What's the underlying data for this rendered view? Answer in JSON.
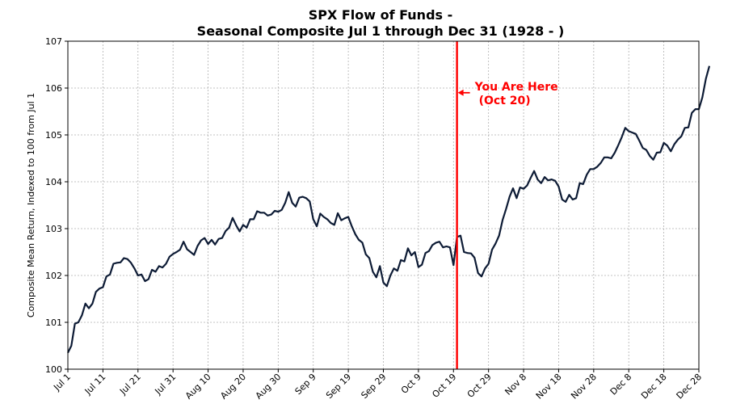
{
  "chart_data": {
    "type": "line",
    "title_line1": "SPX Flow of Funds -",
    "title_line2": "Seasonal Composite Jul 1 through Dec 31 (1928 - )",
    "xlabel": "",
    "ylabel": "Composite Mean Return, Indexed to 100 from Jul 1",
    "ylim": [
      100,
      107
    ],
    "xlim": [
      0,
      180
    ],
    "yticks": [
      100,
      101,
      102,
      103,
      104,
      105,
      106,
      107
    ],
    "xticks": [
      {
        "day": 0,
        "label": "Jul 1"
      },
      {
        "day": 10,
        "label": "Jul 11"
      },
      {
        "day": 20,
        "label": "Jul 21"
      },
      {
        "day": 30,
        "label": "Jul 31"
      },
      {
        "day": 40,
        "label": "Aug 10"
      },
      {
        "day": 50,
        "label": "Aug 20"
      },
      {
        "day": 60,
        "label": "Aug 30"
      },
      {
        "day": 70,
        "label": "Sep 9"
      },
      {
        "day": 80,
        "label": "Sep 19"
      },
      {
        "day": 90,
        "label": "Sep 29"
      },
      {
        "day": 100,
        "label": "Oct 9"
      },
      {
        "day": 110,
        "label": "Oct 19"
      },
      {
        "day": 120,
        "label": "Oct 29"
      },
      {
        "day": 130,
        "label": "Nov 8"
      },
      {
        "day": 140,
        "label": "Nov 18"
      },
      {
        "day": 150,
        "label": "Nov 28"
      },
      {
        "day": 160,
        "label": "Dec 8"
      },
      {
        "day": 170,
        "label": "Dec 18"
      },
      {
        "day": 180,
        "label": "Dec 28"
      }
    ],
    "grid": true,
    "line_color": "#0d1b35",
    "marker": {
      "day": 111,
      "color": "#ff0000"
    },
    "annotation": {
      "line1": "You Are Here",
      "line2": "(Oct 20)",
      "color": "#ff0000",
      "y": 105.9
    },
    "series": [
      {
        "name": "Seasonal Composite",
        "points": [
          [
            0,
            100.35
          ],
          [
            1,
            100.5
          ],
          [
            2,
            100.97
          ],
          [
            3,
            101.0
          ],
          [
            4,
            101.15
          ],
          [
            5,
            101.4
          ],
          [
            6,
            101.3
          ],
          [
            7,
            101.4
          ],
          [
            8,
            101.65
          ],
          [
            9,
            101.72
          ],
          [
            10,
            101.75
          ],
          [
            11,
            101.98
          ],
          [
            12,
            102.02
          ],
          [
            13,
            102.25
          ],
          [
            14,
            102.27
          ],
          [
            15,
            102.28
          ],
          [
            16,
            102.37
          ],
          [
            17,
            102.35
          ],
          [
            18,
            102.27
          ],
          [
            19,
            102.15
          ],
          [
            20,
            102.0
          ],
          [
            21,
            102.02
          ],
          [
            22,
            101.88
          ],
          [
            23,
            101.92
          ],
          [
            24,
            102.12
          ],
          [
            25,
            102.08
          ],
          [
            26,
            102.2
          ],
          [
            27,
            102.17
          ],
          [
            28,
            102.25
          ],
          [
            29,
            102.4
          ],
          [
            30,
            102.46
          ],
          [
            31,
            102.5
          ],
          [
            32,
            102.55
          ],
          [
            33,
            102.72
          ],
          [
            34,
            102.56
          ],
          [
            35,
            102.5
          ],
          [
            36,
            102.44
          ],
          [
            37,
            102.63
          ],
          [
            38,
            102.75
          ],
          [
            39,
            102.8
          ],
          [
            40,
            102.67
          ],
          [
            41,
            102.76
          ],
          [
            42,
            102.66
          ],
          [
            43,
            102.78
          ],
          [
            44,
            102.8
          ],
          [
            45,
            102.95
          ],
          [
            46,
            103.02
          ],
          [
            47,
            103.23
          ],
          [
            48,
            103.07
          ],
          [
            49,
            102.94
          ],
          [
            50,
            103.08
          ],
          [
            51,
            103.02
          ],
          [
            52,
            103.2
          ],
          [
            53,
            103.2
          ],
          [
            54,
            103.37
          ],
          [
            55,
            103.34
          ],
          [
            56,
            103.34
          ],
          [
            57,
            103.28
          ],
          [
            58,
            103.3
          ],
          [
            59,
            103.38
          ],
          [
            60,
            103.36
          ],
          [
            61,
            103.4
          ],
          [
            62,
            103.55
          ],
          [
            63,
            103.78
          ],
          [
            64,
            103.55
          ],
          [
            65,
            103.47
          ],
          [
            66,
            103.66
          ],
          [
            67,
            103.68
          ],
          [
            68,
            103.65
          ],
          [
            69,
            103.58
          ],
          [
            70,
            103.2
          ],
          [
            71,
            103.05
          ],
          [
            72,
            103.32
          ],
          [
            73,
            103.25
          ],
          [
            74,
            103.2
          ],
          [
            75,
            103.12
          ],
          [
            76,
            103.08
          ],
          [
            77,
            103.33
          ],
          [
            78,
            103.18
          ],
          [
            79,
            103.22
          ],
          [
            80,
            103.25
          ],
          [
            81,
            103.05
          ],
          [
            82,
            102.88
          ],
          [
            83,
            102.76
          ],
          [
            84,
            102.7
          ],
          [
            85,
            102.45
          ],
          [
            86,
            102.37
          ],
          [
            87,
            102.08
          ],
          [
            88,
            101.96
          ],
          [
            89,
            102.2
          ],
          [
            90,
            101.85
          ],
          [
            91,
            101.77
          ],
          [
            92,
            102.0
          ],
          [
            93,
            102.15
          ],
          [
            94,
            102.1
          ],
          [
            95,
            102.33
          ],
          [
            96,
            102.3
          ],
          [
            97,
            102.58
          ],
          [
            98,
            102.43
          ],
          [
            99,
            102.5
          ],
          [
            100,
            102.18
          ],
          [
            101,
            102.23
          ],
          [
            102,
            102.48
          ],
          [
            103,
            102.52
          ],
          [
            104,
            102.65
          ],
          [
            105,
            102.7
          ],
          [
            106,
            102.72
          ],
          [
            107,
            102.6
          ],
          [
            108,
            102.62
          ],
          [
            109,
            102.6
          ],
          [
            110,
            102.22
          ],
          [
            111,
            102.82
          ],
          [
            112,
            102.85
          ],
          [
            113,
            102.5
          ],
          [
            114,
            102.48
          ],
          [
            115,
            102.47
          ],
          [
            116,
            102.38
          ],
          [
            117,
            102.05
          ],
          [
            118,
            101.98
          ],
          [
            119,
            102.15
          ],
          [
            120,
            102.25
          ],
          [
            121,
            102.55
          ],
          [
            122,
            102.68
          ],
          [
            123,
            102.85
          ],
          [
            124,
            103.18
          ],
          [
            125,
            103.42
          ],
          [
            126,
            103.68
          ],
          [
            127,
            103.86
          ],
          [
            128,
            103.65
          ],
          [
            129,
            103.88
          ],
          [
            130,
            103.85
          ],
          [
            131,
            103.92
          ],
          [
            132,
            104.08
          ],
          [
            133,
            104.23
          ],
          [
            134,
            104.05
          ],
          [
            135,
            103.97
          ],
          [
            136,
            104.1
          ],
          [
            137,
            104.03
          ],
          [
            138,
            104.05
          ],
          [
            139,
            104.02
          ],
          [
            140,
            103.9
          ],
          [
            141,
            103.62
          ],
          [
            142,
            103.57
          ],
          [
            143,
            103.72
          ],
          [
            144,
            103.62
          ],
          [
            145,
            103.65
          ],
          [
            146,
            103.97
          ],
          [
            147,
            103.95
          ],
          [
            148,
            104.15
          ],
          [
            149,
            104.27
          ],
          [
            150,
            104.27
          ],
          [
            151,
            104.32
          ],
          [
            152,
            104.4
          ],
          [
            153,
            104.52
          ],
          [
            154,
            104.52
          ],
          [
            155,
            104.5
          ],
          [
            156,
            104.62
          ],
          [
            157,
            104.78
          ],
          [
            158,
            104.95
          ],
          [
            159,
            105.15
          ],
          [
            160,
            105.08
          ],
          [
            161,
            105.05
          ],
          [
            162,
            105.02
          ],
          [
            163,
            104.88
          ],
          [
            164,
            104.72
          ],
          [
            165,
            104.68
          ],
          [
            166,
            104.55
          ],
          [
            167,
            104.47
          ],
          [
            168,
            104.62
          ],
          [
            169,
            104.63
          ],
          [
            170,
            104.83
          ],
          [
            171,
            104.77
          ],
          [
            172,
            104.65
          ],
          [
            173,
            104.8
          ],
          [
            174,
            104.9
          ],
          [
            175,
            104.97
          ],
          [
            176,
            105.15
          ],
          [
            177,
            105.16
          ],
          [
            178,
            105.47
          ],
          [
            179,
            105.55
          ],
          [
            180,
            105.55
          ],
          [
            181,
            105.8
          ],
          [
            182,
            106.2
          ],
          [
            183,
            106.47
          ]
        ]
      }
    ]
  }
}
